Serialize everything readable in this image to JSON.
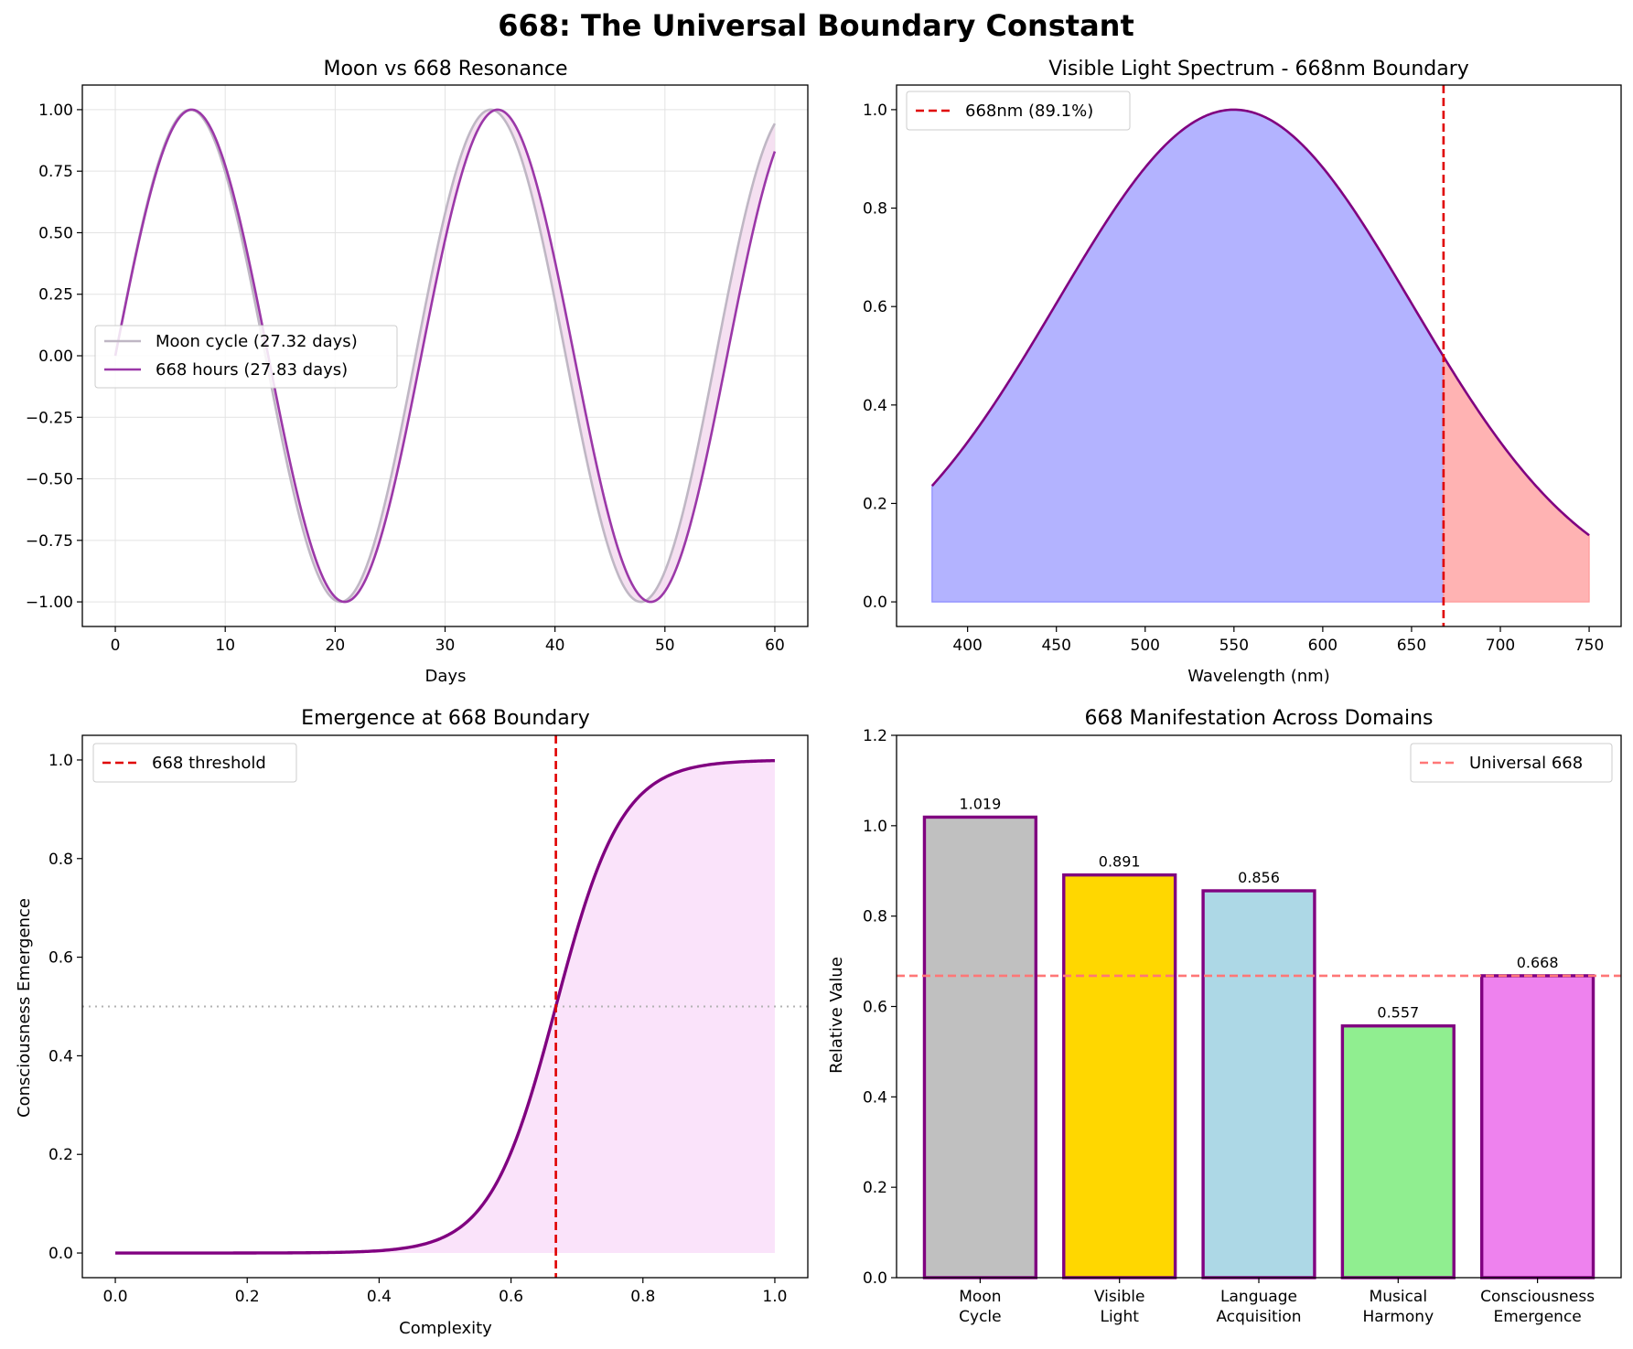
{
  "figure": {
    "title": "668: The Universal Boundary Constant"
  },
  "chart_data": [
    {
      "type": "line",
      "title": "Moon vs 668 Resonance",
      "xlabel": "Days",
      "ylabel": "",
      "xlim": [
        -3,
        63
      ],
      "ylim": [
        -1.1,
        1.1
      ],
      "xticks": [
        0,
        10,
        20,
        30,
        40,
        50,
        60
      ],
      "yticks": [
        -1.0,
        -0.75,
        -0.5,
        -0.25,
        0.0,
        0.25,
        0.5,
        0.75,
        1.0
      ],
      "ytick_labels": [
        "−1.00",
        "−0.75",
        "−0.50",
        "−0.25",
        "0.00",
        "0.25",
        "0.50",
        "0.75",
        "1.00"
      ],
      "grid": true,
      "legend_position": "center-left",
      "series": [
        {
          "name": "Moon cycle (27.32 days)",
          "function": "sin(2*pi*x/27.32)",
          "x_range": [
            0,
            60
          ],
          "color": "#bfb7c4"
        },
        {
          "name": "668 hours (27.83 days)",
          "function": "sin(2*pi*x/27.83)",
          "x_range": [
            0,
            60
          ],
          "color": "#9b38a8"
        }
      ],
      "fill_between_series": {
        "color": "#f2d8ee"
      }
    },
    {
      "type": "area",
      "title": "Visible Light Spectrum - 668nm Boundary",
      "xlabel": "Wavelength (nm)",
      "ylabel": "",
      "xlim": [
        360,
        768
      ],
      "ylim": [
        -0.05,
        1.05
      ],
      "xticks": [
        400,
        450,
        500,
        550,
        600,
        650,
        700,
        750
      ],
      "yticks": [
        0.0,
        0.2,
        0.4,
        0.6,
        0.8,
        1.0
      ],
      "ytick_labels": [
        "0.0",
        "0.2",
        "0.4",
        "0.6",
        "0.8",
        "1.0"
      ],
      "grid": false,
      "legend_position": "top-left",
      "curve": {
        "function": "exp(-((x-550)^2)/(2*100^2))",
        "x_range": [
          380,
          750
        ],
        "color": "#800080"
      },
      "fill_regions": [
        {
          "x_range": [
            380,
            668
          ],
          "color": "#b3b3ff"
        },
        {
          "x_range": [
            668,
            750
          ],
          "color": "#ffb3b3"
        }
      ],
      "vline": {
        "x": 668,
        "name": "668nm (89.1%)",
        "color": "#e00000"
      }
    },
    {
      "type": "line",
      "title": "Emergence at 668 Boundary",
      "xlabel": "Complexity",
      "ylabel": "Consciousness Emergence",
      "xlim": [
        -0.05,
        1.05
      ],
      "ylim": [
        -0.05,
        1.05
      ],
      "xticks": [
        0.0,
        0.2,
        0.4,
        0.6,
        0.8,
        1.0
      ],
      "yticks": [
        0.0,
        0.2,
        0.4,
        0.6,
        0.8,
        1.0
      ],
      "xtick_labels": [
        "0.0",
        "0.2",
        "0.4",
        "0.6",
        "0.8",
        "1.0"
      ],
      "ytick_labels": [
        "0.0",
        "0.2",
        "0.4",
        "0.6",
        "0.8",
        "1.0"
      ],
      "grid": false,
      "legend_position": "top-left",
      "curve": {
        "function": "1/(1+exp(-20*(x-0.668)))",
        "x_range": [
          0,
          1
        ],
        "color": "#800080"
      },
      "fill_color": "#fae3fa",
      "vline": {
        "x": 0.668,
        "name": "668 threshold",
        "color": "#e00000"
      },
      "hline": {
        "y": 0.5,
        "color": "#b3b3b3"
      }
    },
    {
      "type": "bar",
      "title": "668 Manifestation Across Domains",
      "xlabel": "",
      "ylabel": "Relative Value",
      "ylim": [
        0,
        1.2
      ],
      "yticks": [
        0.0,
        0.2,
        0.4,
        0.6,
        0.8,
        1.0,
        1.2
      ],
      "ytick_labels": [
        "0.0",
        "0.2",
        "0.4",
        "0.6",
        "0.8",
        "1.0",
        "1.2"
      ],
      "grid": false,
      "legend_position": "top-right",
      "categories": [
        [
          "Moon",
          "Cycle"
        ],
        [
          "Visible",
          "Light"
        ],
        [
          "Language",
          "Acquisition"
        ],
        [
          "Musical",
          "Harmony"
        ],
        [
          "Consciousness",
          "Emergence"
        ]
      ],
      "values": [
        1.019,
        0.891,
        0.856,
        0.557,
        0.668
      ],
      "value_labels": [
        "1.019",
        "0.891",
        "0.856",
        "0.557",
        "0.668"
      ],
      "colors": [
        "#c0c0c0",
        "#ffd700",
        "#add8e6",
        "#90ee90",
        "#ee82ee"
      ],
      "edge_color": "#800080",
      "hline": {
        "y": 0.668,
        "name": "Universal 668",
        "color": "#ff7777"
      }
    }
  ]
}
